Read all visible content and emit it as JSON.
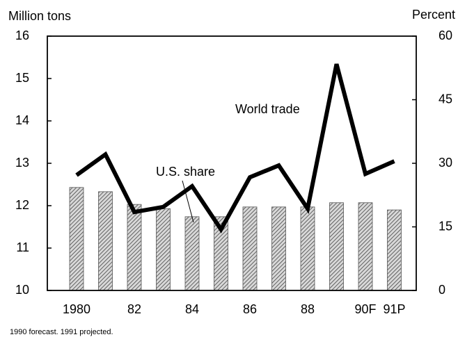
{
  "chart_data": {
    "type": "combo",
    "ylabel": "Million tons",
    "y2label": "Percent",
    "categories": [
      "1980",
      null,
      "82",
      null,
      "84",
      null,
      "86",
      null,
      "88",
      null,
      "90F",
      "91P"
    ],
    "series": [
      {
        "name": "U.S. share",
        "type": "bar",
        "axis": "y2",
        "color": "#555555",
        "values": [
          24.3,
          23.3,
          20.3,
          19.3,
          17.4,
          17.4,
          19.7,
          19.7,
          19.7,
          20.7,
          20.7,
          19.0
        ]
      },
      {
        "name": "World trade",
        "type": "line",
        "color": "#000000",
        "values": [
          12.72,
          13.21,
          11.85,
          11.97,
          12.46,
          11.44,
          12.67,
          12.95,
          11.93,
          15.34,
          12.75,
          13.05
        ]
      }
    ],
    "ylim": [
      10,
      16
    ],
    "yticks": [
      10,
      11,
      12,
      13,
      14,
      15,
      16
    ],
    "y2lim": [
      0,
      60
    ],
    "y2ticks": [
      0,
      15,
      30,
      45,
      60
    ],
    "footnote": "1990 forecast.  1991 projected."
  }
}
